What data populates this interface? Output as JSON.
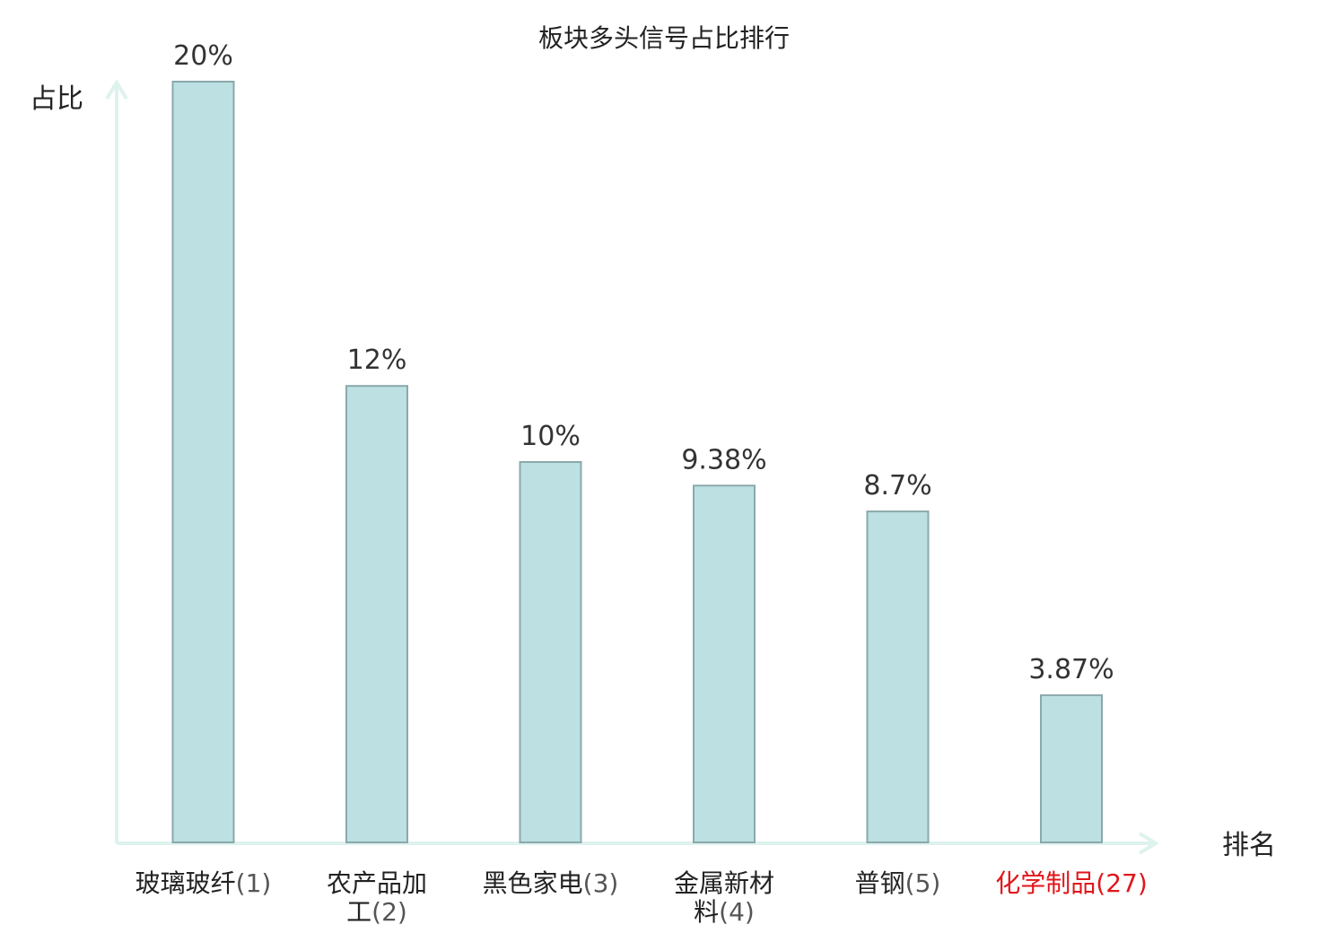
{
  "chart_data": {
    "type": "bar",
    "title": "板块多头信号占比排行",
    "ylabel": "占比",
    "xlabel": "排名",
    "categories": [
      {
        "lines": [
          "玻璃玻纤"
        ],
        "rank": "(1)",
        "highlight": false
      },
      {
        "lines": [
          "农产品加",
          "工"
        ],
        "rank": "(2)",
        "highlight": false
      },
      {
        "lines": [
          "黑色家电"
        ],
        "rank": "(3)",
        "highlight": false
      },
      {
        "lines": [
          "金属新材",
          "料"
        ],
        "rank": "(4)",
        "highlight": false
      },
      {
        "lines": [
          "普钢"
        ],
        "rank": "(5)",
        "highlight": false
      },
      {
        "lines": [
          "化学制品"
        ],
        "rank": "(27)",
        "highlight": true
      }
    ],
    "values": [
      20,
      12,
      10,
      9.38,
      8.7,
      3.87
    ],
    "value_labels": [
      "20%",
      "12%",
      "10%",
      "9.38%",
      "8.7%",
      "3.87%"
    ],
    "ylim": [
      0,
      20
    ],
    "grid": false,
    "colors": {
      "bar_fill": "#bde0e3",
      "bar_stroke": "#8aa9ab",
      "axis": "#def2ee",
      "highlight": "#e0161b"
    }
  }
}
